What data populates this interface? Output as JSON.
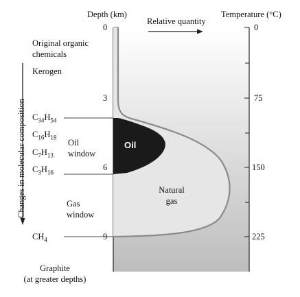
{
  "axes": {
    "depth_title": "Depth (km)",
    "depth_ticks": [
      "0",
      "3",
      "6",
      "9"
    ],
    "temp_title": "Temperature (°C)",
    "temp_ticks": [
      "0",
      "75",
      "150",
      "225"
    ],
    "quantity_label": "Relative quantity"
  },
  "stages": {
    "organic_line1": "Original organic",
    "organic_line2": "chemicals",
    "kerogen": "Kerogen",
    "graphite_line1": "Graphite",
    "graphite_line2": "(at greater depths)"
  },
  "composition_label": "Changes in molecular composition",
  "formulas": [
    {
      "base": "C",
      "sub1": "34",
      "mid": "H",
      "sub2": "54"
    },
    {
      "base": "C",
      "sub1": "16",
      "mid": "H",
      "sub2": "18"
    },
    {
      "base": "C",
      "sub1": "7",
      "mid": "H",
      "sub2": "13"
    },
    {
      "base": "C",
      "sub1": "3",
      "mid": "H",
      "sub2": "16"
    },
    {
      "base": "CH",
      "sub1": "4",
      "mid": "",
      "sub2": ""
    }
  ],
  "windows": {
    "oil_line1": "Oil",
    "oil_line2": "window",
    "gas_line1": "Gas",
    "gas_line2": "window"
  },
  "regions": {
    "oil": "Oil",
    "gas_line1": "Natural",
    "gas_line2": "gas"
  },
  "colors": {
    "oil": "#1a1a1a",
    "gas": "#e6e6e6",
    "curve": "#8a8a8a",
    "gradient_top": "#ffffff",
    "gradient_bottom": "#bdbdbd"
  }
}
